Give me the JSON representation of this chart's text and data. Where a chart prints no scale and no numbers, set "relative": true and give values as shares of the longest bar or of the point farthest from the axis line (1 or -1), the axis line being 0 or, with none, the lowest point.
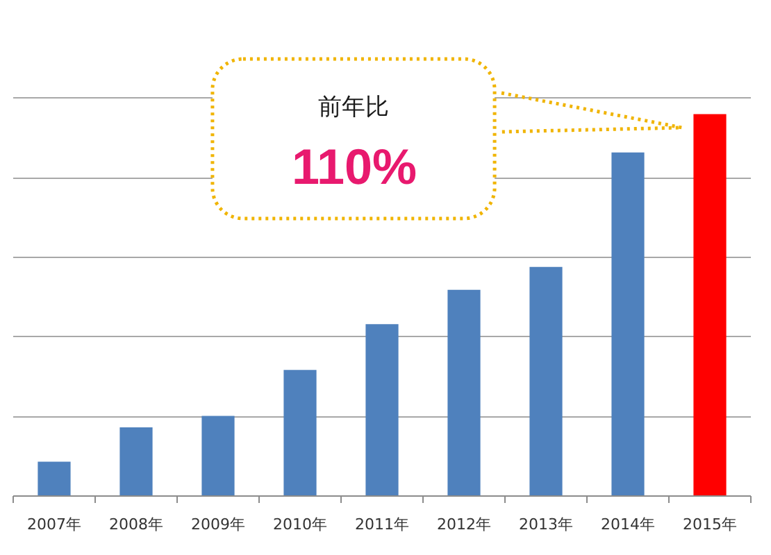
{
  "chart_data": {
    "type": "bar",
    "categories": [
      "2007年",
      "2008年",
      "2009年",
      "2010年",
      "2011年",
      "2012年",
      "2013年",
      "2014年",
      "2015年"
    ],
    "values": [
      0.09,
      0.18,
      0.21,
      0.33,
      0.45,
      0.54,
      0.6,
      0.9,
      1
    ],
    "colors": [
      "#4f81bd",
      "#4f81bd",
      "#4f81bd",
      "#4f81bd",
      "#4f81bd",
      "#4f81bd",
      "#4f81bd",
      "#4f81bd",
      "#ff0000"
    ],
    "relative": true,
    "grid": "y",
    "annotations": [
      "前年比",
      "110%"
    ]
  }
}
